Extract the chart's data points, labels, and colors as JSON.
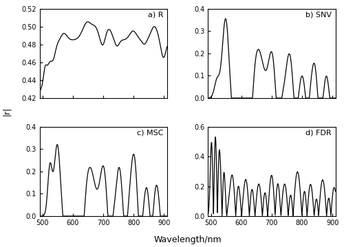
{
  "xlabel": "Wavelength/nm",
  "ylabel": "|r|",
  "subplots": [
    {
      "label": "a) R",
      "ylim": [
        0.42,
        0.52
      ],
      "yticks": [
        0.42,
        0.44,
        0.46,
        0.48,
        0.5,
        0.52
      ]
    },
    {
      "label": "b) SNV",
      "ylim": [
        0.0,
        0.4
      ],
      "yticks": [
        0.0,
        0.1,
        0.2,
        0.3,
        0.4
      ]
    },
    {
      "label": "c) MSC",
      "ylim": [
        0.0,
        0.4
      ],
      "yticks": [
        0.0,
        0.1,
        0.2,
        0.3,
        0.4
      ]
    },
    {
      "label": "d) FDR",
      "ylim": [
        0.0,
        0.6
      ],
      "yticks": [
        0.0,
        0.2,
        0.4,
        0.6
      ]
    }
  ],
  "xlim": [
    490,
    910
  ],
  "xticks": [
    500,
    600,
    700,
    800,
    900
  ],
  "line_color": "black",
  "line_width": 0.9,
  "background": "white"
}
